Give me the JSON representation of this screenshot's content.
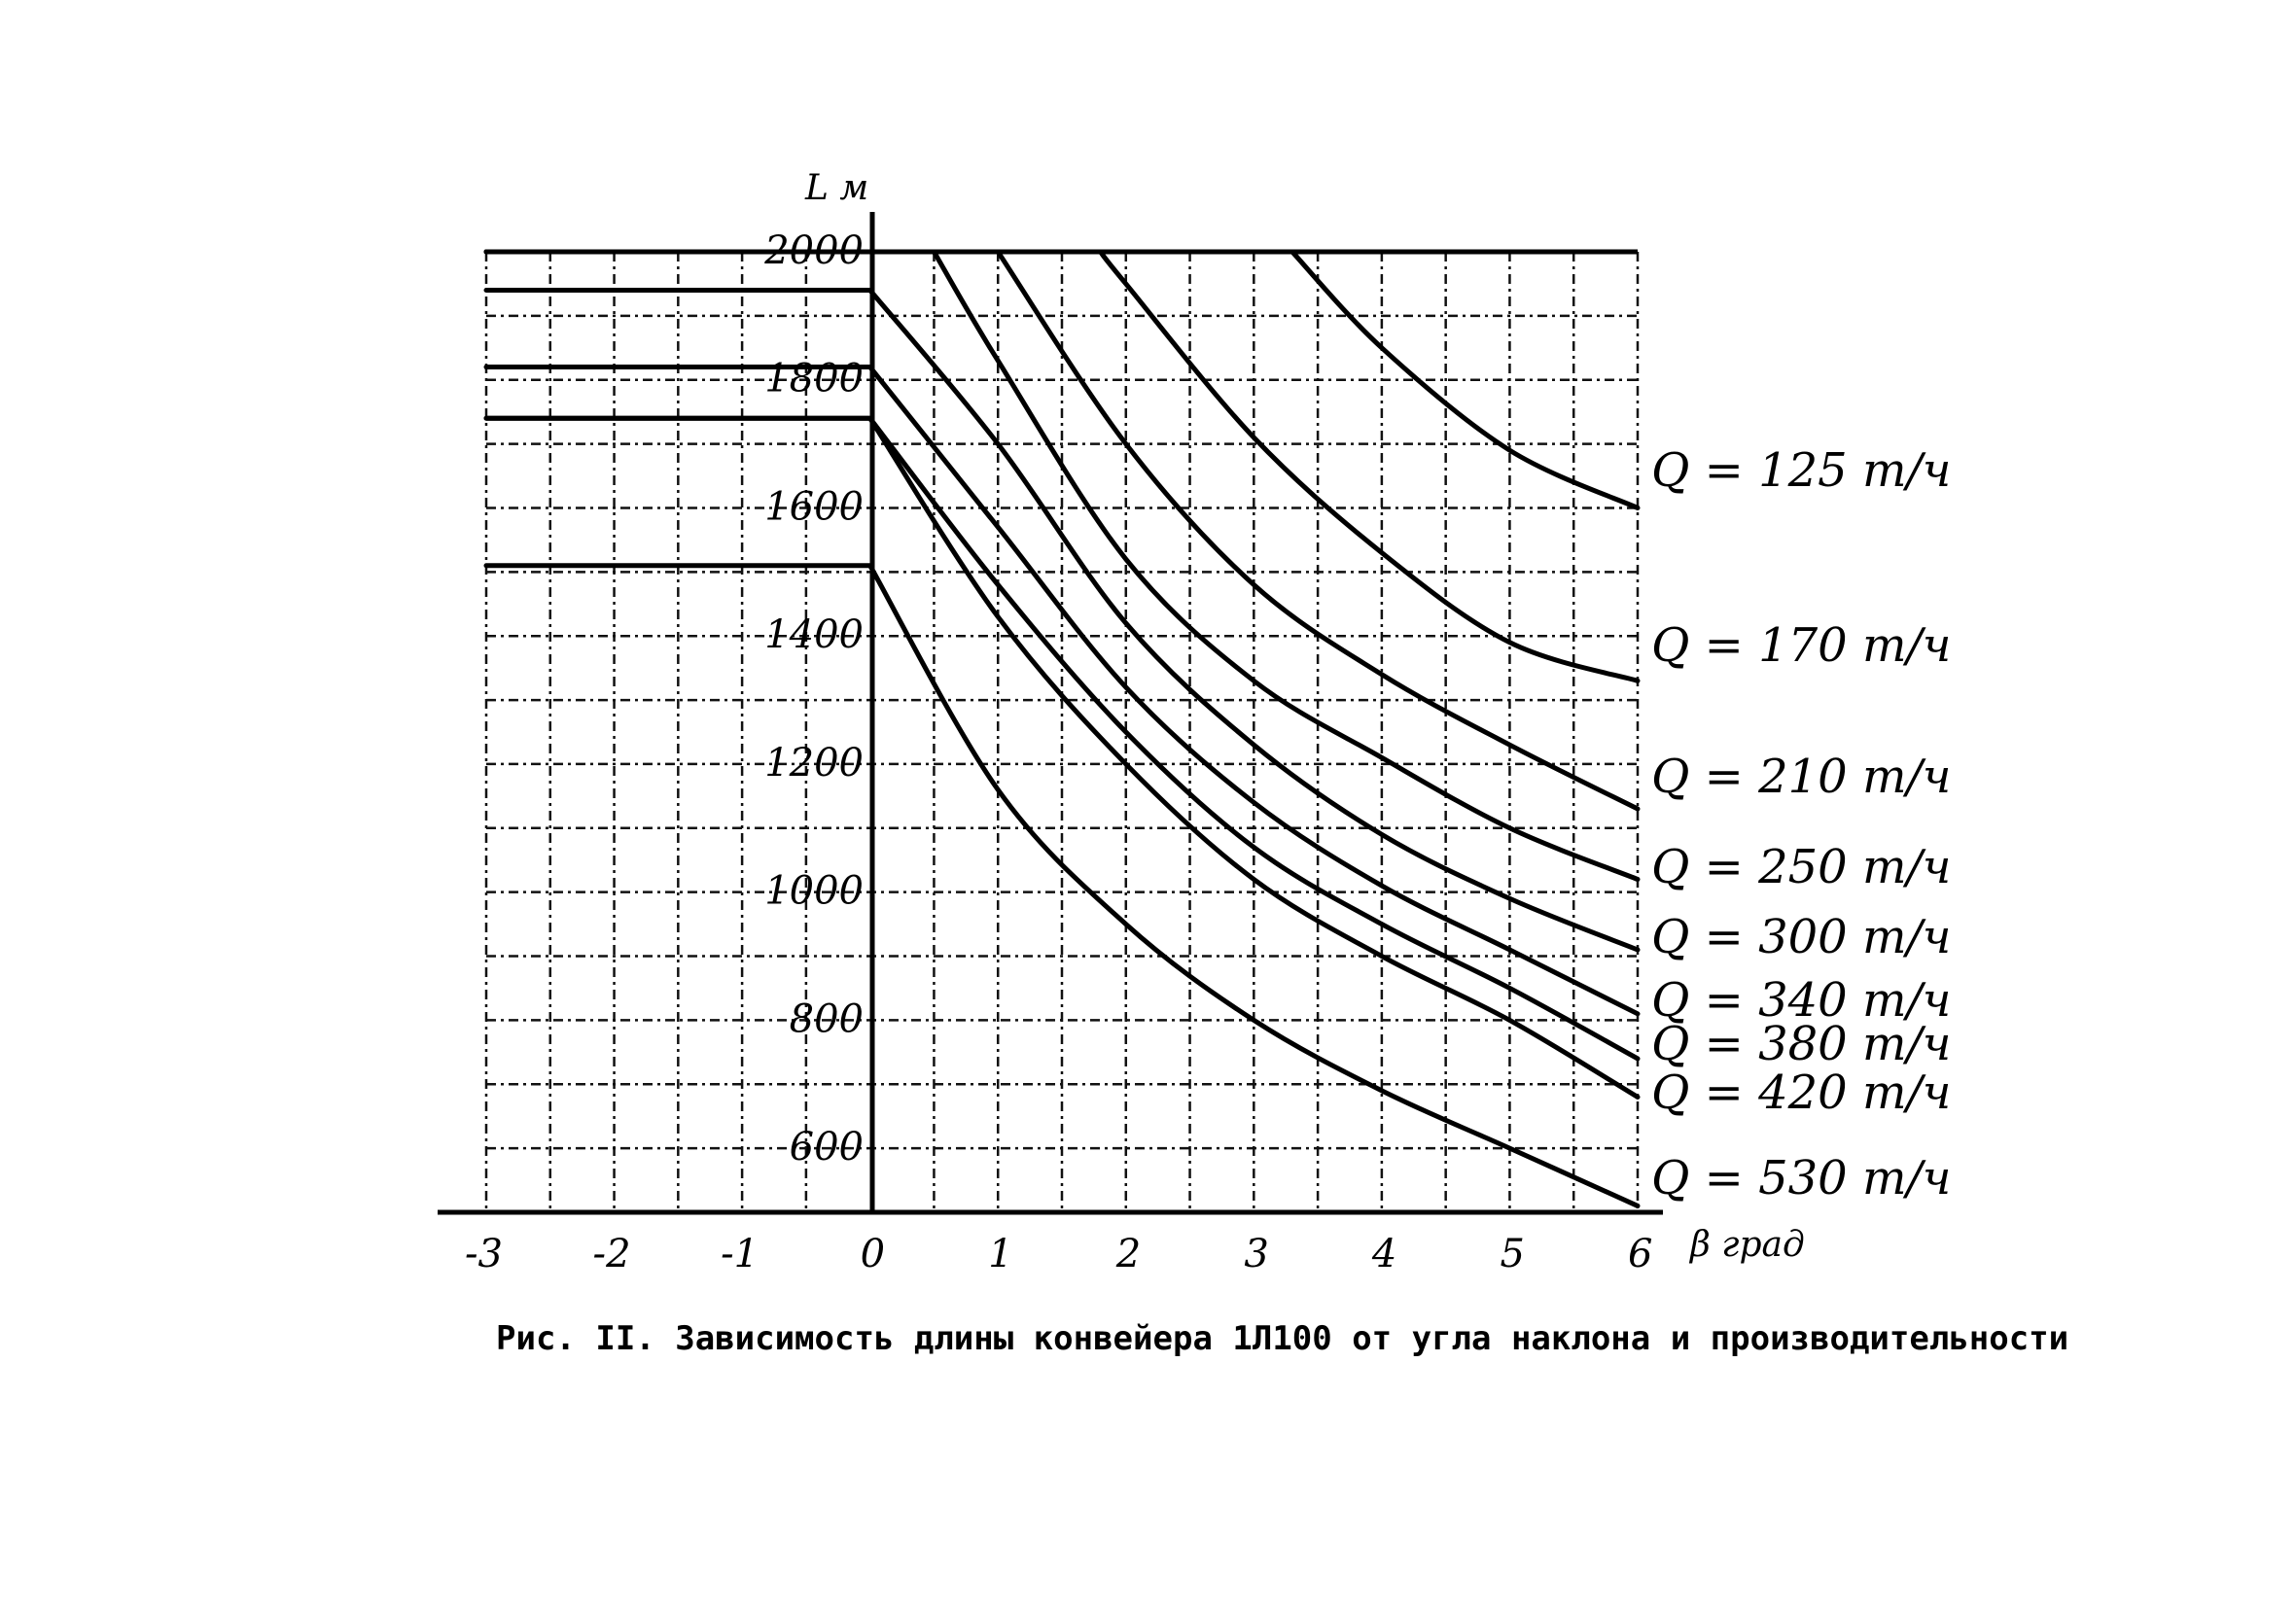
{
  "chart_data": {
    "type": "line",
    "title": "",
    "caption": "Рис. II. Зависимость длины конвейера 1Л100 от угла наклона и производительности",
    "xlabel": "β град",
    "ylabel": "L м",
    "xlim": [
      -3,
      6
    ],
    "ylim": [
      500,
      2000
    ],
    "x_ticks": [
      "-3",
      "-2",
      "-1",
      "0",
      "1",
      "2",
      "3",
      "4",
      "5",
      "6"
    ],
    "y_ticks": [
      "2000",
      "1800",
      "1600",
      "1400",
      "1200",
      "1000",
      "800",
      "600"
    ],
    "grid": true,
    "series": [
      {
        "name": "Q = 125 т/ч",
        "x": [
          -3,
          0,
          1,
          2,
          3,
          3.3,
          4,
          5,
          6
        ],
        "y": [
          2000,
          2000,
          2000,
          2000,
          2000,
          2000,
          1850,
          1690,
          1600
        ]
      },
      {
        "name": "Q = 170 т/ч",
        "x": [
          -3,
          0,
          1,
          1.8,
          2,
          3,
          4,
          5,
          6
        ],
        "y": [
          2000,
          2000,
          2000,
          2000,
          1950,
          1710,
          1530,
          1390,
          1330
        ]
      },
      {
        "name": "Q = 210 т/ч",
        "x": [
          -3,
          0,
          1,
          2,
          3,
          4,
          5,
          6
        ],
        "y": [
          2000,
          2000,
          2000,
          1700,
          1480,
          1340,
          1230,
          1130
        ]
      },
      {
        "name": "Q = 250 т/ч",
        "x": [
          -3,
          0,
          0.5,
          1,
          2,
          3,
          4,
          5,
          6
        ],
        "y": [
          2000,
          2000,
          2000,
          1830,
          1520,
          1330,
          1210,
          1100,
          1020
        ]
      },
      {
        "name": "Q = 300 т/ч",
        "x": [
          -3,
          0,
          1,
          2,
          3,
          4,
          5,
          6
        ],
        "y": [
          1940,
          1940,
          1700,
          1420,
          1230,
          1090,
          990,
          910
        ]
      },
      {
        "name": "Q = 340 т/ч",
        "x": [
          -3,
          0,
          1,
          2,
          3,
          4,
          5,
          6
        ],
        "y": [
          1820,
          1820,
          1570,
          1320,
          1140,
          1010,
          910,
          810
        ]
      },
      {
        "name": "Q = 380 т/ч",
        "x": [
          -3,
          0,
          1,
          2,
          3,
          4,
          5,
          6
        ],
        "y": [
          1740,
          1740,
          1480,
          1250,
          1070,
          950,
          850,
          740
        ]
      },
      {
        "name": "Q = 420 т/ч",
        "x": [
          -3,
          0,
          1,
          2,
          3,
          4,
          5,
          6
        ],
        "y": [
          1740,
          1740,
          1430,
          1200,
          1020,
          900,
          800,
          680
        ]
      },
      {
        "name": "Q = 530 т/ч",
        "x": [
          -3,
          0,
          1,
          2,
          3,
          4,
          5,
          6
        ],
        "y": [
          1510,
          1510,
          1160,
          950,
          800,
          690,
          600,
          510
        ]
      }
    ],
    "series_labels": [
      "Q = 125 т/ч",
      "Q = 170 т/ч",
      "Q = 210 т/ч",
      "Q = 250 т/ч",
      "Q = 300 т/ч",
      "Q = 340 т/ч",
      "Q = 380 т/ч",
      "Q = 420 т/ч",
      "Q = 530 т/ч"
    ]
  }
}
